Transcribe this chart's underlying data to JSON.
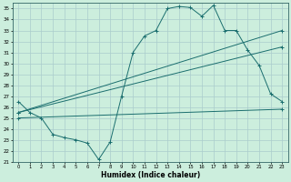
{
  "xlabel": "Humidex (Indice chaleur)",
  "bg_color": "#cceedd",
  "grid_color": "#aacccc",
  "line_color": "#1a6e6e",
  "xlim": [
    -0.5,
    23.5
  ],
  "ylim": [
    21,
    35.5
  ],
  "xticks": [
    0,
    1,
    2,
    3,
    4,
    5,
    6,
    7,
    8,
    9,
    10,
    11,
    12,
    13,
    14,
    15,
    16,
    17,
    18,
    19,
    20,
    21,
    22,
    23
  ],
  "yticks": [
    21,
    22,
    23,
    24,
    25,
    26,
    27,
    28,
    29,
    30,
    31,
    32,
    33,
    34,
    35
  ],
  "series1_x": [
    0,
    1,
    2,
    3,
    4,
    5,
    6,
    7,
    8,
    9,
    10,
    11,
    12,
    13,
    14,
    15,
    16,
    17,
    18,
    19,
    20,
    21,
    22,
    23
  ],
  "series1_y": [
    26.5,
    25.5,
    25.0,
    23.5,
    23.2,
    23.0,
    22.7,
    21.2,
    22.8,
    27.0,
    31.0,
    32.5,
    33.0,
    35.0,
    35.2,
    35.1,
    34.3,
    35.3,
    33.0,
    33.0,
    31.2,
    29.8,
    27.2,
    26.5
  ],
  "series2_x": [
    0,
    23
  ],
  "series2_y": [
    25.5,
    33.0
  ],
  "series3_x": [
    0,
    23
  ],
  "series3_y": [
    25.5,
    31.5
  ],
  "series4_x": [
    0,
    23
  ],
  "series4_y": [
    25.0,
    25.8
  ]
}
